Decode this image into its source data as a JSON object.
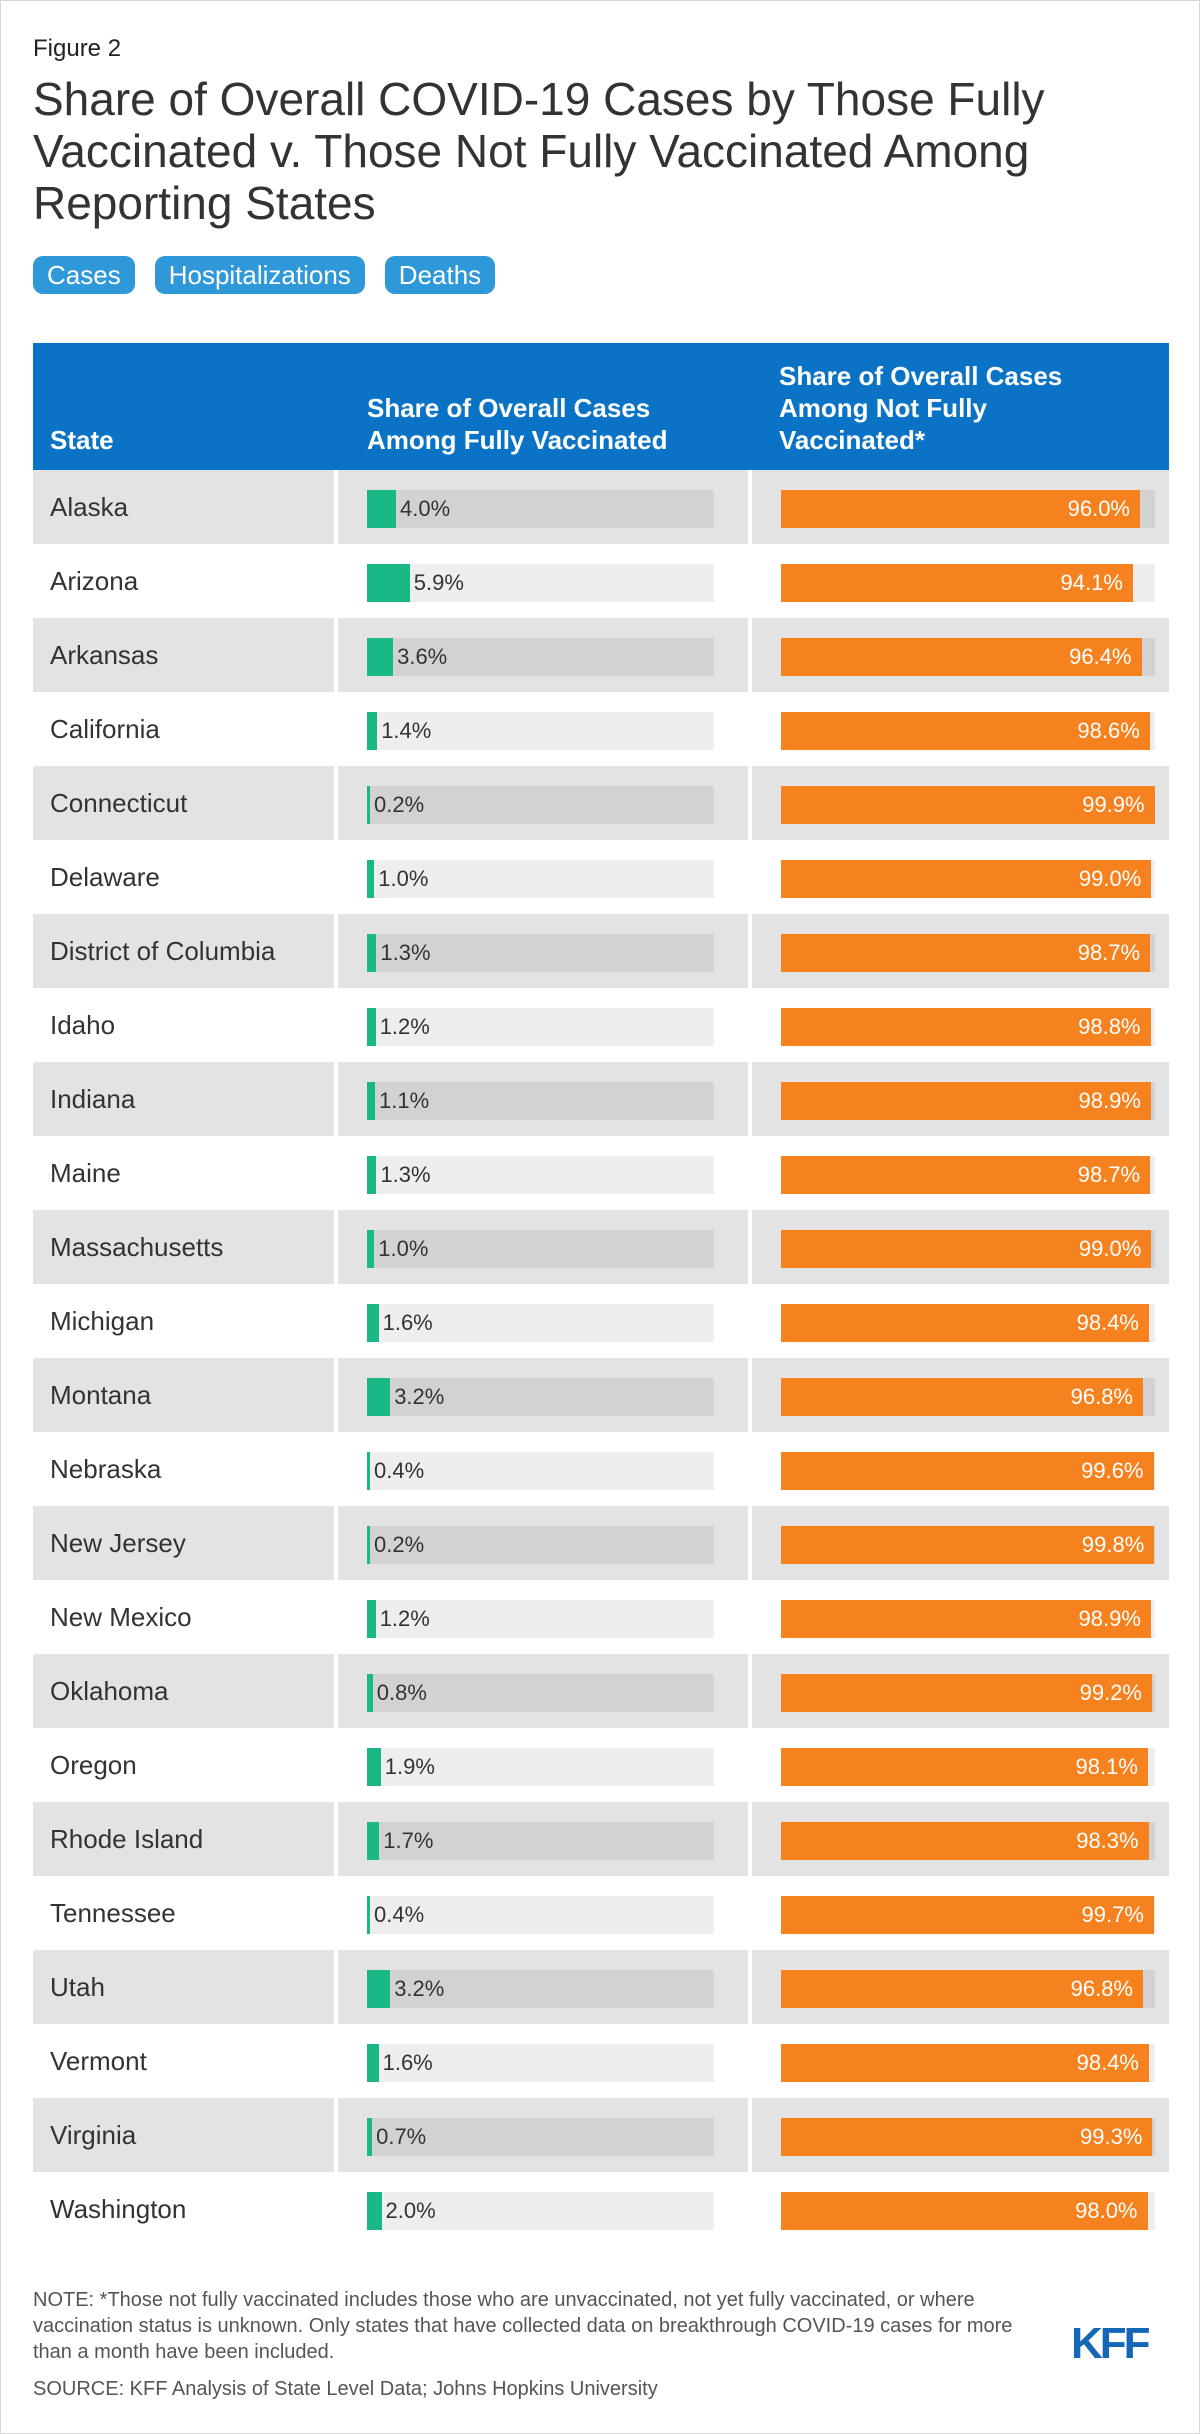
{
  "figure_label": "Figure 2",
  "title": "Share of Overall COVID-19 Cases by Those Fully Vaccinated v. Those Not Fully Vaccinated Among Reporting States",
  "tabs": [
    {
      "label": "Cases"
    },
    {
      "label": "Hospitalizations"
    },
    {
      "label": "Deaths"
    }
  ],
  "colors": {
    "header": "#0a73c6",
    "vaccinated": "#1ab787",
    "not_vaccinated": "#f5821f",
    "tab": "#2f98d9"
  },
  "chart_data": {
    "type": "bar",
    "column_headers": {
      "state": "State",
      "vaccinated": "Share of Overall Cases Among Fully Vaccinated",
      "not_vaccinated": "Share of Overall Cases Among Not Fully Vaccinated*"
    },
    "xlim": [
      0,
      100
    ],
    "categories": [
      "Alaska",
      "Arizona",
      "Arkansas",
      "California",
      "Connecticut",
      "Delaware",
      "District of Columbia",
      "Idaho",
      "Indiana",
      "Maine",
      "Massachusetts",
      "Michigan",
      "Montana",
      "Nebraska",
      "New Jersey",
      "New Mexico",
      "Oklahoma",
      "Oregon",
      "Rhode Island",
      "Tennessee",
      "Utah",
      "Vermont",
      "Virginia",
      "Washington"
    ],
    "series": [
      {
        "name": "Share of Overall Cases Among Fully Vaccinated",
        "values": [
          4.0,
          5.9,
          3.6,
          1.4,
          0.2,
          1.0,
          1.3,
          1.2,
          1.1,
          1.3,
          1.0,
          1.6,
          3.2,
          0.4,
          0.2,
          1.2,
          0.8,
          1.9,
          1.7,
          0.4,
          3.2,
          1.6,
          0.7,
          2.0
        ]
      },
      {
        "name": "Share of Overall Cases Among Not Fully Vaccinated*",
        "values": [
          96.0,
          94.1,
          96.4,
          98.6,
          99.9,
          99.0,
          98.7,
          98.8,
          98.9,
          98.7,
          99.0,
          98.4,
          96.8,
          99.6,
          99.8,
          98.9,
          99.2,
          98.1,
          98.3,
          99.7,
          96.8,
          98.4,
          99.3,
          98.0
        ]
      }
    ]
  },
  "note": "NOTE: *Those not fully vaccinated includes those who are unvaccinated, not yet fully vaccinated, or where vaccination status is unknown. Only states that have collected data on breakthrough COVID-19 cases for more than a month have been included.",
  "source": "SOURCE: KFF Analysis of State Level Data; Johns Hopkins University",
  "logo_text": "KFF"
}
